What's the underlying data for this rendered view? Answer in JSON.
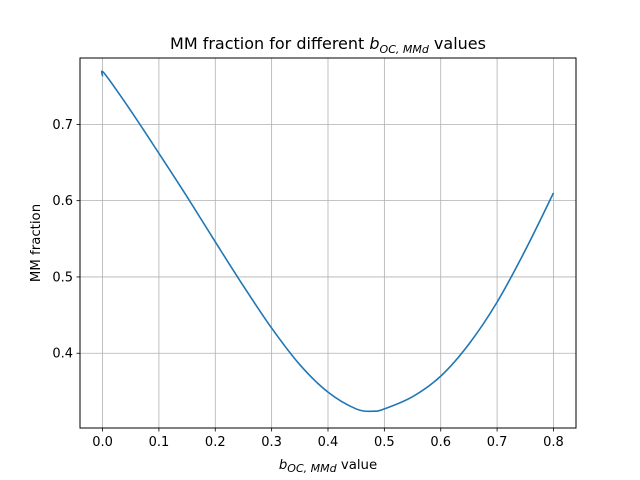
{
  "chart_data": {
    "type": "line",
    "title": {
      "prefix": "MM fraction for different ",
      "symbol": "b",
      "subscript": "OC, MMd",
      "suffix": " values"
    },
    "xlabel": {
      "symbol": "b",
      "subscript": "OC, MMd",
      "suffix": " value"
    },
    "ylabel": "MM fraction",
    "xlim": [
      -0.04,
      0.84
    ],
    "ylim": [
      0.302,
      0.787
    ],
    "xticks": [
      0.0,
      0.1,
      0.2,
      0.3,
      0.4,
      0.5,
      0.6,
      0.7,
      0.8
    ],
    "xtick_labels": [
      "0.0",
      "0.1",
      "0.2",
      "0.3",
      "0.4",
      "0.5",
      "0.6",
      "0.7",
      "0.8"
    ],
    "yticks": [
      0.4,
      0.5,
      0.6,
      0.7
    ],
    "ytick_labels": [
      "0.4",
      "0.5",
      "0.6",
      "0.7"
    ],
    "grid": true,
    "line_color": "#1f77b4",
    "series": [
      {
        "x": [
          0.0,
          0.003,
          0.05,
          0.1,
          0.15,
          0.2,
          0.25,
          0.3,
          0.35,
          0.4,
          0.45,
          0.48,
          0.5,
          0.55,
          0.6,
          0.65,
          0.7,
          0.75,
          0.8
        ],
        "y": [
          0.763,
          0.767,
          0.718,
          0.662,
          0.605,
          0.546,
          0.488,
          0.433,
          0.385,
          0.349,
          0.327,
          0.324,
          0.327,
          0.343,
          0.37,
          0.412,
          0.467,
          0.535,
          0.61
        ]
      }
    ]
  }
}
